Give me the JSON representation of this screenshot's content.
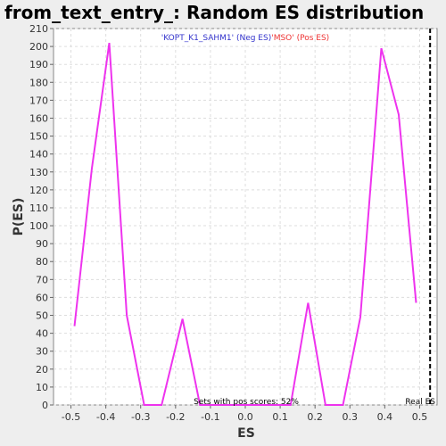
{
  "chart_data": {
    "type": "line",
    "title": "from_text_entry_: Random ES distribution",
    "xlabel": "ES",
    "ylabel": "P(ES)",
    "xlim": [
      -0.55,
      0.55
    ],
    "ylim": [
      0,
      210
    ],
    "xticks": [
      -0.5,
      -0.4,
      -0.3,
      -0.2,
      -0.1,
      0.0,
      0.1,
      0.2,
      0.3,
      0.4,
      0.5
    ],
    "xtick_labels": [
      "-0.5",
      "-0.4",
      "-0.3",
      "-0.2",
      "-0.1",
      "0.0",
      "0.1",
      "0.2",
      "0.3",
      "0.4",
      "0.5"
    ],
    "yticks": [
      0,
      10,
      20,
      30,
      40,
      50,
      60,
      70,
      80,
      90,
      100,
      110,
      120,
      130,
      140,
      150,
      160,
      170,
      180,
      190,
      200,
      210
    ],
    "grid": true,
    "series": [
      {
        "color": "#ee33ee",
        "x": [
          -0.49,
          -0.44,
          -0.39,
          -0.34,
          -0.29,
          -0.24,
          -0.18,
          -0.13,
          -0.08,
          -0.03,
          0.03,
          0.08,
          0.13,
          0.18,
          0.23,
          0.28,
          0.33,
          0.39,
          0.44,
          0.49
        ],
        "y": [
          44,
          132,
          202,
          50,
          0,
          0,
          48,
          0,
          0,
          0,
          0,
          0,
          0,
          57,
          0,
          0,
          49,
          199,
          162,
          57
        ]
      }
    ],
    "legend": {
      "position": "top-center",
      "neg_text": "'KOPT_K1_SAHM1' (Neg ES)",
      "neg_color": "#3333cc",
      "pos_text": "'MSO' (Pos ES)",
      "pos_color": "#ee3333"
    },
    "annotations": {
      "pos_scores_text": "Sets with pos scores: 52%",
      "real_es_label": "Real ES",
      "real_es_x": 0.53
    }
  }
}
